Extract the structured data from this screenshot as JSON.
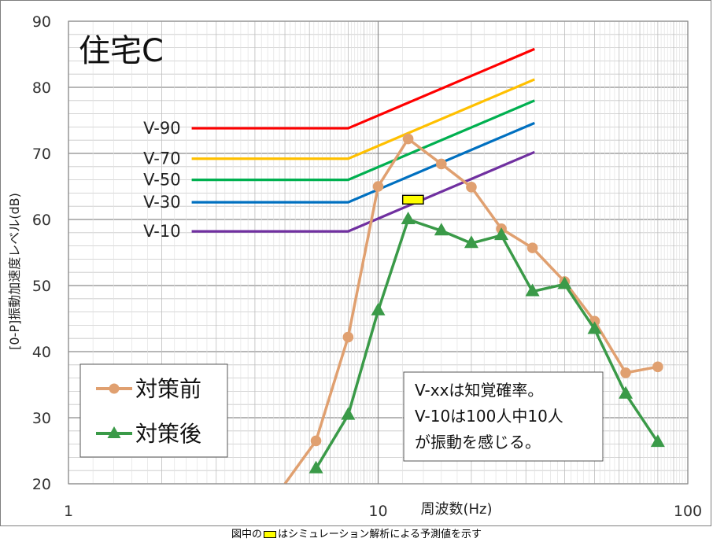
{
  "chart_data": {
    "type": "line",
    "title": "住宅C",
    "xlabel": "周波数(Hz)",
    "ylabel": "[0-P]振動加速度レベル(dB)",
    "x_scale": "log",
    "xlim": [
      1,
      100
    ],
    "ylim": [
      20,
      90
    ],
    "x_ticks": [
      "1",
      "10",
      "100"
    ],
    "y_ticks": [
      "20",
      "30",
      "40",
      "50",
      "60",
      "70",
      "80",
      "90"
    ],
    "grid": true,
    "reference_lines": [
      {
        "name": "V-90",
        "color": "#ff0000",
        "x": [
          2.5,
          8,
          32
        ],
        "y": [
          73.8,
          73.8,
          85.8
        ]
      },
      {
        "name": "V-70",
        "color": "#ffc000",
        "x": [
          2.5,
          8,
          32
        ],
        "y": [
          69.2,
          69.2,
          81.2
        ]
      },
      {
        "name": "V-50",
        "color": "#00b050",
        "x": [
          2.5,
          8,
          32
        ],
        "y": [
          66.0,
          66.0,
          78.0
        ]
      },
      {
        "name": "V-30",
        "color": "#0070c0",
        "x": [
          2.5,
          8,
          32
        ],
        "y": [
          62.6,
          62.6,
          74.6
        ]
      },
      {
        "name": "V-10",
        "color": "#7030a0",
        "x": [
          2.5,
          8,
          32
        ],
        "y": [
          58.2,
          58.2,
          70.2
        ]
      }
    ],
    "series": [
      {
        "name": "対策前",
        "color": "#e0a070",
        "marker": "circle",
        "x": [
          5,
          6.3,
          8,
          10,
          12.5,
          16,
          20,
          25,
          31.5,
          40,
          50,
          63,
          80
        ],
        "y": [
          20,
          26.5,
          42.2,
          65.0,
          72.2,
          68.4,
          64.9,
          58.6,
          55.7,
          50.6,
          44.6,
          36.8,
          37.7
        ]
      },
      {
        "name": "対策後",
        "color": "#3a9a48",
        "marker": "triangle",
        "x": [
          6.3,
          8,
          10,
          12.5,
          16,
          20,
          25,
          31.5,
          40,
          50,
          63,
          80
        ],
        "y": [
          22.3,
          30.4,
          46.2,
          60.0,
          58.3,
          56.4,
          57.6,
          49.1,
          50.2,
          43.4,
          33.6,
          26.3
        ]
      }
    ],
    "simulation_marker": {
      "x_range": [
        12.0,
        14.0
      ],
      "y": 63.0,
      "color": "#ffff00"
    },
    "legend": {
      "position": "bottom-left",
      "entries": [
        "対策前",
        "対策後"
      ]
    },
    "annotation": [
      "V-xxは知覚確率。",
      "V-10は100人中10人",
      "が振動を感じる。"
    ]
  },
  "footnote": {
    "before": "図中の",
    "after": "はシミュレーション解析による予測値を示す"
  }
}
